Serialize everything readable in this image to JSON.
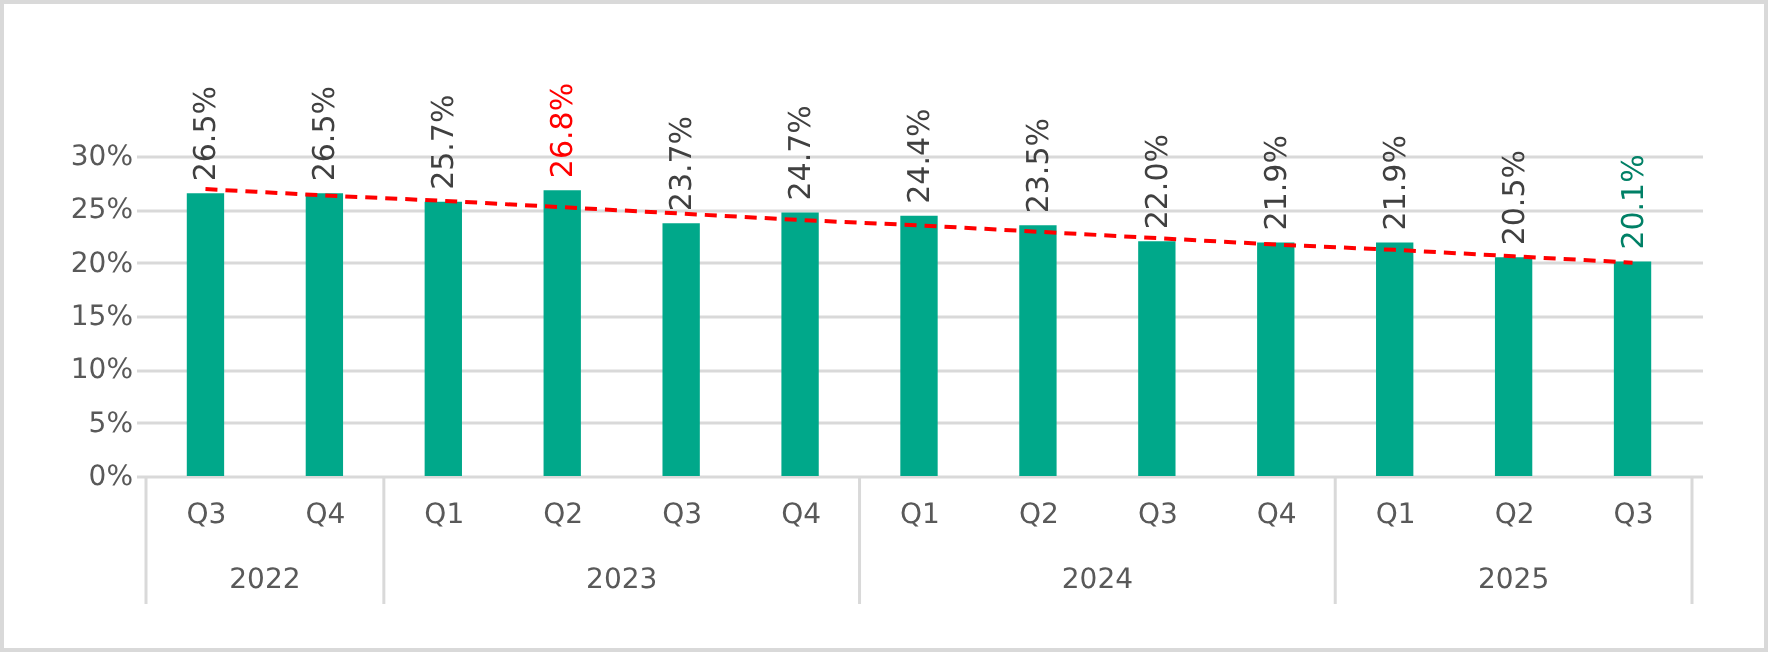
{
  "chart_data": {
    "type": "bar",
    "categories": [
      "Q3",
      "Q4",
      "Q1",
      "Q2",
      "Q3",
      "Q4",
      "Q1",
      "Q2",
      "Q3",
      "Q4",
      "Q1",
      "Q2",
      "Q3"
    ],
    "series": [
      {
        "color": "#00a88a",
        "values": [
          26.5,
          26.5,
          25.7,
          26.8,
          23.7,
          24.7,
          24.4,
          23.5,
          22.0,
          21.9,
          21.9,
          20.5,
          20.1
        ],
        "value_labels": [
          "26.5%",
          "26.5%",
          "25.7%",
          "26.8%",
          "23.7%",
          "24.7%",
          "24.4%",
          "23.5%",
          "22.0%",
          "21.9%",
          "21.9%",
          "20.5%",
          "20.1%"
        ]
      },
      {
        "type": "line",
        "color": "#ff0000",
        "line_style": "dashed",
        "values": [
          26.9,
          26.3,
          25.8,
          25.2,
          24.6,
          24.0,
          23.5,
          22.9,
          22.3,
          21.7,
          21.2,
          20.6,
          20.0
        ]
      }
    ],
    "annotations": [
      "2022",
      "2023",
      "2024",
      "2025"
    ],
    "ylim": [
      0,
      30
    ],
    "yticks": [
      {
        "value": 0,
        "label": "0%"
      },
      {
        "value": 5,
        "label": "5%"
      },
      {
        "value": 10,
        "label": "10%"
      },
      {
        "value": 15,
        "label": "15%"
      },
      {
        "value": 20,
        "label": "20%"
      },
      {
        "value": 25,
        "label": "25%"
      },
      {
        "value": 30,
        "label": "30%"
      }
    ],
    "grid": "y"
  }
}
